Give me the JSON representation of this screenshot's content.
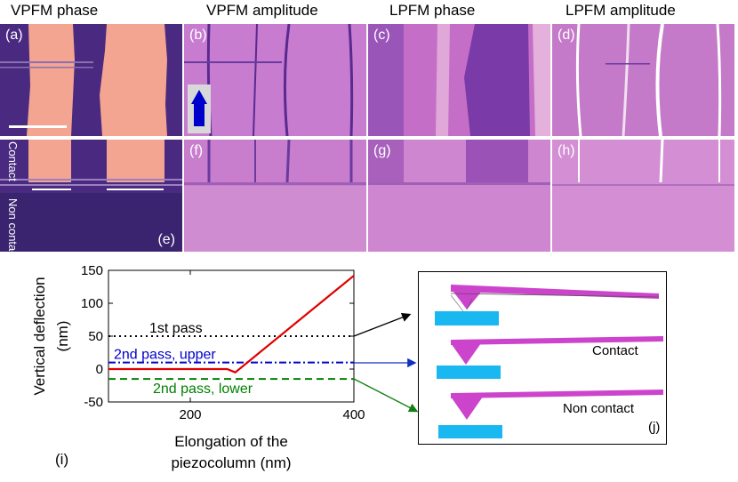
{
  "column_titles": [
    "VPFM phase",
    "VPFM amplitude",
    "LPFM phase",
    "LPFM amplitude"
  ],
  "panel_labels": [
    "(a)",
    "(b)",
    "(c)",
    "(d)",
    "(e)",
    "(f)",
    "(g)",
    "(h)"
  ],
  "row2_side_labels": {
    "contact": "Contact",
    "non_contact": "Non contact"
  },
  "chart_data": {
    "type": "line",
    "panel_label": "(i)",
    "xlabel": "Elongation of the piezocolumn (nm)",
    "ylabel": "Vertical deflection (nm)",
    "xlim": [
      100,
      400
    ],
    "ylim": [
      -50,
      150
    ],
    "xticks": [
      200,
      400
    ],
    "yticks": [
      -50,
      0,
      50,
      100,
      150
    ],
    "grid": false,
    "series": [
      {
        "color": "#e00000",
        "style": "solid",
        "x": [
          100,
          245,
          255,
          400
        ],
        "y": [
          0,
          0,
          -5,
          142
        ]
      }
    ],
    "reference_lines": [
      {
        "name": "1st pass",
        "y": 50,
        "style": "dotted",
        "color": "#000000"
      },
      {
        "name": "2nd pass, upper",
        "y": 10,
        "style": "dashdot",
        "color": "#0000cc"
      },
      {
        "name": "2nd pass, lower",
        "y": -15,
        "style": "dashed",
        "color": "#008000"
      }
    ]
  },
  "diagram": {
    "panel_label": "(j)",
    "contact_label": "Contact",
    "non_contact_label": "Non contact"
  },
  "colors": {
    "domain_light": "#f4a592",
    "domain_dark": "#4a2a80",
    "amplitude": "#c77ccf",
    "probe": "#cc44cc",
    "substrate": "#1ab8f0"
  }
}
